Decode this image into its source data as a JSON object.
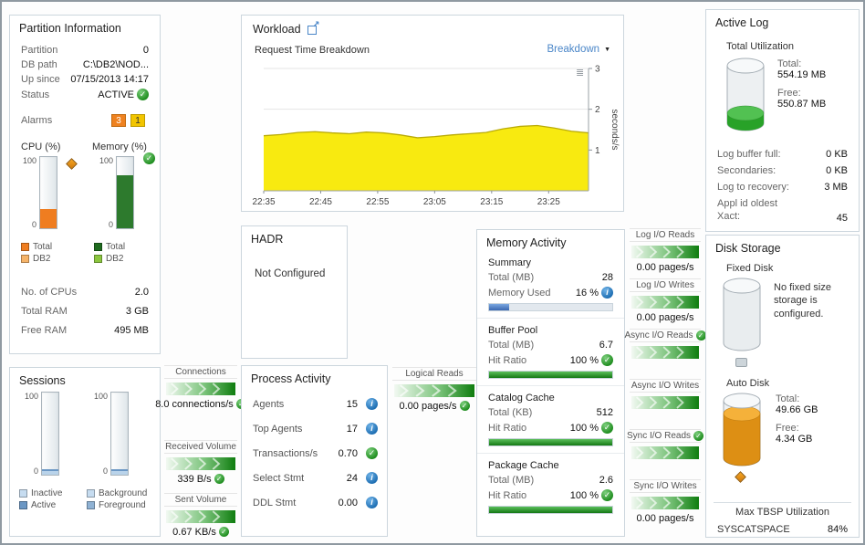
{
  "colors": {
    "status_ok_green": "#1b8a1b",
    "alarm_warning_orange": "#ef8220",
    "alarm_caution_yellow": "#f2c500",
    "chart_area_yellow": "#f8ea10",
    "link_blue": "#4a86c8",
    "info_blue": "#1a6bb0",
    "disk_used_orange": "#dd8f14",
    "flow_green": "#0f7d0f",
    "memory_used_blue": "#4472b8"
  },
  "partition_info": {
    "title": "Partition Information",
    "rows": [
      {
        "label": "Partition",
        "value": "0"
      },
      {
        "label": "DB path",
        "value": "C:\\DB2\\NOD..."
      },
      {
        "label": "Up since",
        "value": "07/15/2013 14:17"
      },
      {
        "label": "Status",
        "value": "ACTIVE"
      }
    ],
    "alarms": {
      "label": "Alarms",
      "warning_count": "3",
      "caution_count": "1"
    },
    "cpu": {
      "label": "CPU (%)",
      "scale_max": "100",
      "scale_min": "0",
      "fill_pct": 27,
      "fill_color": "#ef7d20",
      "legend": [
        {
          "label": "Total",
          "color": "#ef7d20"
        },
        {
          "label": "DB2",
          "color": "#f6b469"
        }
      ]
    },
    "memory": {
      "label": "Memory (%)",
      "scale_max": "100",
      "scale_min": "0",
      "fill_pct": 75,
      "fill_color": "#2d7a2d",
      "legend": [
        {
          "label": "Total",
          "color": "#1f6b1f"
        },
        {
          "label": "DB2",
          "color": "#8cc63f"
        }
      ]
    },
    "stats": [
      {
        "label": "No. of CPUs",
        "value": "2.0"
      },
      {
        "label": "Total RAM",
        "value": "3 GB"
      },
      {
        "label": "Free RAM",
        "value": "495 MB"
      }
    ]
  },
  "sessions": {
    "title": "Sessions",
    "gauge1": {
      "scale_max": "100",
      "scale_min": "0",
      "fill_pct": 7,
      "fill_color": "#b9d3ea"
    },
    "gauge2": {
      "scale_max": "100",
      "scale_min": "0",
      "fill_pct": 7,
      "fill_color": "#b9d3ea"
    },
    "legend_col1": [
      {
        "label": "Inactive",
        "color": "#c6dcf0"
      },
      {
        "label": "Active",
        "color": "#6b97c4"
      }
    ],
    "legend_col2": [
      {
        "label": "Background",
        "color": "#c6dcf0"
      },
      {
        "label": "Foreground",
        "color": "#8fb2d4"
      }
    ]
  },
  "flows_left": [
    {
      "label": "Connections",
      "value": "8.0 connections/s"
    },
    {
      "label": "Received Volume",
      "value": "339 B/s"
    },
    {
      "label": "Sent Volume",
      "value": "0.67 KB/s"
    }
  ],
  "logical_reads_flow": {
    "label": "Logical Reads",
    "value": "0.00 pages/s"
  },
  "workload": {
    "title": "Workload",
    "subtitle": "Request Time Breakdown",
    "breakdown_selector": "Breakdown"
  },
  "chart_data": {
    "type": "area",
    "title": "Request Time Breakdown",
    "series_name": "Request Time",
    "ylabel": "seconds/s",
    "ylim": [
      0,
      3
    ],
    "yticks": [
      1,
      2,
      3
    ],
    "x_max": 57,
    "x": [
      0,
      3,
      6,
      9,
      12,
      15,
      18,
      21,
      24,
      27,
      30,
      33,
      36,
      39,
      42,
      45,
      48,
      51,
      54,
      57
    ],
    "values": [
      1.35,
      1.38,
      1.43,
      1.45,
      1.42,
      1.4,
      1.44,
      1.42,
      1.37,
      1.3,
      1.33,
      1.37,
      1.4,
      1.43,
      1.52,
      1.58,
      1.6,
      1.54,
      1.46,
      1.42
    ],
    "x_labels": [
      {
        "m": 0,
        "label": "22:35"
      },
      {
        "m": 10,
        "label": "22:45"
      },
      {
        "m": 20,
        "label": "22:55"
      },
      {
        "m": 30,
        "label": "23:05"
      },
      {
        "m": 40,
        "label": "23:15"
      },
      {
        "m": 50,
        "label": "23:25"
      }
    ],
    "grid": true,
    "legend_position": "none"
  },
  "hadr": {
    "title": "HADR",
    "status": "Not Configured"
  },
  "process_activity": {
    "title": "Process Activity",
    "rows": [
      {
        "label": "Agents",
        "value": "15"
      },
      {
        "label": "Top Agents",
        "value": "17"
      },
      {
        "label": "Transactions/s",
        "value": "0.70"
      },
      {
        "label": "Select Stmt",
        "value": "24"
      },
      {
        "label": "DDL Stmt",
        "value": "0.00"
      }
    ]
  },
  "memory_activity": {
    "title": "Memory Activity",
    "summary": {
      "header": "Summary",
      "total_label": "Total (MB)",
      "total_value": "28",
      "used_label": "Memory Used",
      "used_value": "16 %",
      "used_pct": 16
    },
    "buffer_pool": {
      "header": "Buffer Pool",
      "total_label": "Total (MB)",
      "total_value": "6.7",
      "hit_label": "Hit Ratio",
      "hit_value": "100 %",
      "hit_pct": 100
    },
    "catalog_cache": {
      "header": "Catalog Cache",
      "total_label": "Total (KB)",
      "total_value": "512",
      "hit_label": "Hit Ratio",
      "hit_value": "100 %",
      "hit_pct": 100
    },
    "package_cache": {
      "header": "Package Cache",
      "total_label": "Total (MB)",
      "total_value": "2.6",
      "hit_label": "Hit Ratio",
      "hit_value": "100 %",
      "hit_pct": 100
    }
  },
  "io_flows": [
    {
      "label": "Log I/O Reads",
      "value": "0.00 pages/s"
    },
    {
      "label": "Log I/O Writes",
      "value": "0.00 pages/s"
    },
    {
      "label": "Async I/O Reads",
      "value": ""
    },
    {
      "label": "Async I/O Writes",
      "value": ""
    },
    {
      "label": "Sync I/O Reads",
      "value": ""
    },
    {
      "label": "Sync I/O Writes",
      "value": "0.00 pages/s"
    }
  ],
  "active_log": {
    "title": "Active Log",
    "utilization_label": "Total Utilization",
    "total_label": "Total:",
    "total_value": "554.19 MB",
    "free_label": "Free:",
    "free_value": "550.87 MB",
    "rows": [
      {
        "label": "Log buffer full:",
        "value": "0 KB"
      },
      {
        "label": "Secondaries:",
        "value": "0 KB"
      },
      {
        "label": "Log to recovery:",
        "value": "3 MB"
      },
      {
        "label": "Appl id oldest Xact:",
        "value": "45"
      }
    ]
  },
  "disk_storage": {
    "title": "Disk Storage",
    "fixed_disk": {
      "header": "Fixed Disk",
      "message": "No fixed size storage is configured."
    },
    "auto_disk": {
      "header": "Auto Disk",
      "total_label": "Total:",
      "total_value": "49.66 GB",
      "free_label": "Free:",
      "free_value": "4.34 GB"
    },
    "max_tbsp": {
      "header": "Max TBSP Utilization",
      "name": "SYSCATSPACE",
      "value": "84%"
    }
  }
}
